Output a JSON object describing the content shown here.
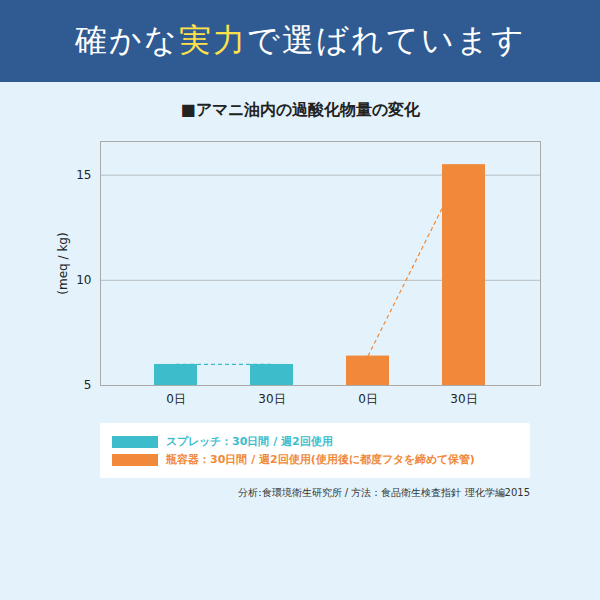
{
  "header": {
    "title_parts": [
      "確かな",
      "実力",
      "で選ばれています"
    ]
  },
  "chart_data": {
    "type": "bar",
    "title": "■アマニ油内の過酸化物量の変化",
    "y_label": "(meq / kg)",
    "categories": [
      "0日",
      "30日",
      "0日",
      "30日"
    ],
    "series": [
      {
        "name": "スプレッチ：30日間 / 週2回使用",
        "color": "#3dbdcc",
        "values": [
          6.0,
          6.0,
          null,
          null
        ]
      },
      {
        "name": "瓶容器：30日間 / 週2回使用(使用後に都度フタを締めて保管)",
        "color": "#f0893a",
        "values": [
          null,
          null,
          6.4,
          15.5
        ]
      }
    ],
    "ylim": [
      5,
      16.6
    ],
    "yticks": [
      5,
      10,
      15
    ],
    "grid": true,
    "source": "分析:食環境衛生研究所 / 方法：食品衛生検査指針 理化学編2015"
  }
}
